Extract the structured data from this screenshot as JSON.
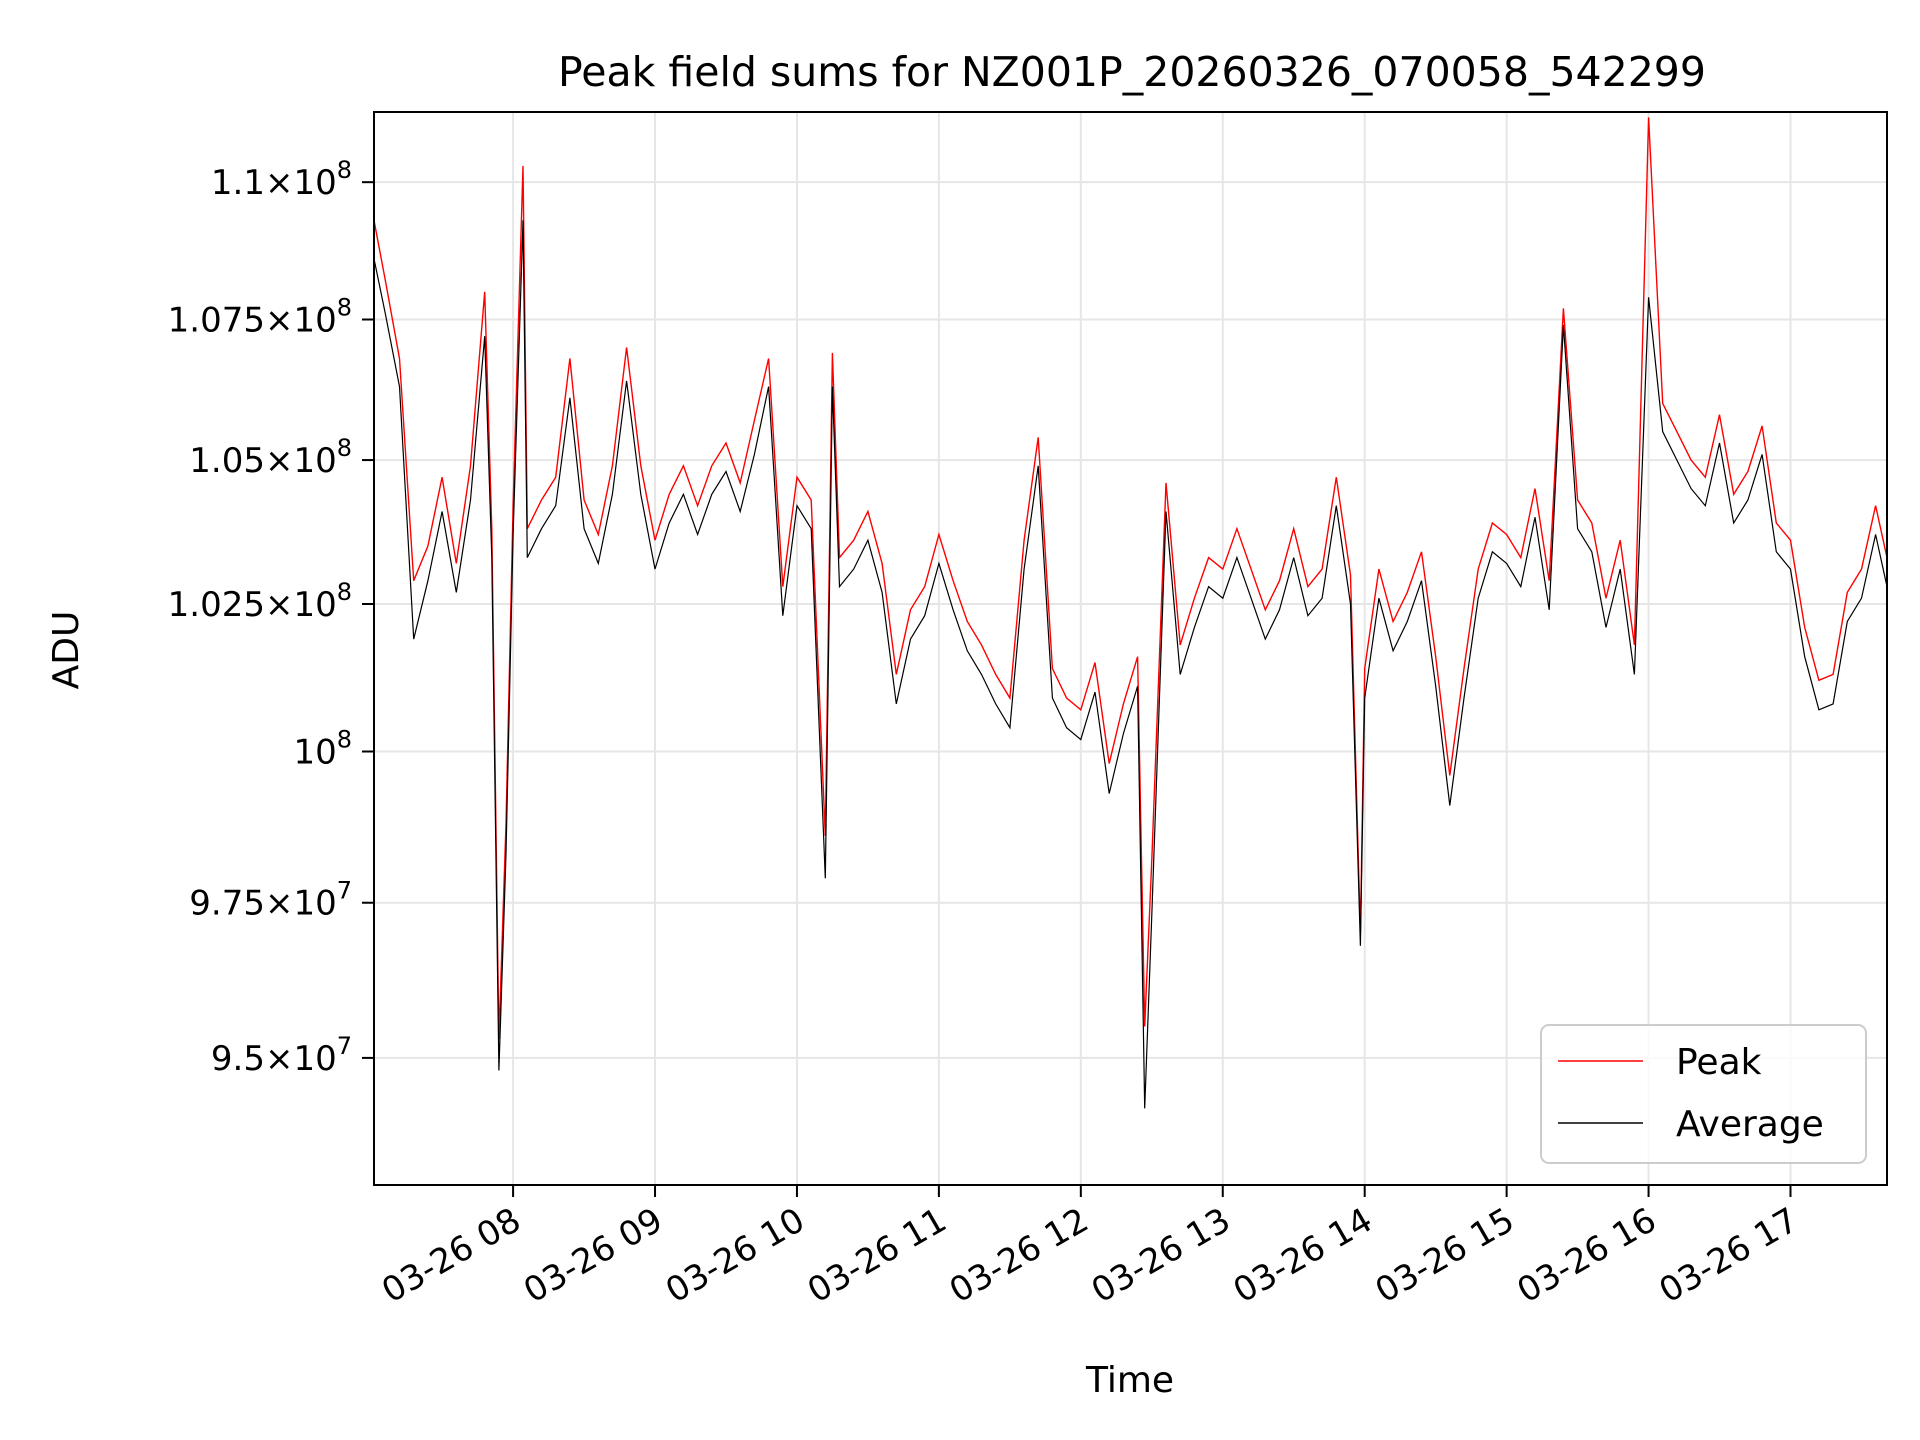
{
  "chart_data": {
    "type": "line",
    "title": "Peak field sums for NZ001P_20260326_070058_542299",
    "xlabel": "Time",
    "ylabel": "ADU",
    "y_scale": "log",
    "ylim": [
      93000000,
      111300000
    ],
    "x_range_hours": [
      7.02,
      17.68
    ],
    "grid": true,
    "legend_location": "lower-right",
    "x_ticks": [
      {
        "hour": 8,
        "label": "03-26 08"
      },
      {
        "hour": 9,
        "label": "03-26 09"
      },
      {
        "hour": 10,
        "label": "03-26 10"
      },
      {
        "hour": 11,
        "label": "03-26 11"
      },
      {
        "hour": 12,
        "label": "03-26 12"
      },
      {
        "hour": 13,
        "label": "03-26 13"
      },
      {
        "hour": 14,
        "label": "03-26 14"
      },
      {
        "hour": 15,
        "label": "03-26 15"
      },
      {
        "hour": 16,
        "label": "03-26 16"
      },
      {
        "hour": 17,
        "label": "03-26 17"
      }
    ],
    "y_ticks": [
      {
        "value": 95000000,
        "mantissa": "9.5",
        "exponent": "7"
      },
      {
        "value": 97500000,
        "mantissa": "9.75",
        "exponent": "7"
      },
      {
        "value": 100000000,
        "mantissa": "",
        "exponent": "8"
      },
      {
        "value": 102500000,
        "mantissa": "1.025",
        "exponent": "8"
      },
      {
        "value": 105000000,
        "mantissa": "1.05",
        "exponent": "8"
      },
      {
        "value": 107500000,
        "mantissa": "1.075",
        "exponent": "8"
      },
      {
        "value": 110000000,
        "mantissa": "1.1",
        "exponent": "8"
      }
    ],
    "series": [
      {
        "name": "Peak",
        "color": "#ff0000",
        "approximate_trace": true,
        "x_hours": [
          7.02,
          7.1,
          7.2,
          7.3,
          7.4,
          7.5,
          7.6,
          7.7,
          7.8,
          7.85,
          7.9,
          7.95,
          8.0,
          8.07,
          8.1,
          8.2,
          8.3,
          8.4,
          8.5,
          8.6,
          8.7,
          8.8,
          8.9,
          9.0,
          9.1,
          9.2,
          9.3,
          9.4,
          9.5,
          9.6,
          9.7,
          9.8,
          9.9,
          10.0,
          10.1,
          10.2,
          10.25,
          10.3,
          10.4,
          10.5,
          10.6,
          10.7,
          10.8,
          10.9,
          11.0,
          11.1,
          11.2,
          11.3,
          11.4,
          11.5,
          11.6,
          11.7,
          11.8,
          11.9,
          12.0,
          12.1,
          12.2,
          12.3,
          12.4,
          12.45,
          12.5,
          12.6,
          12.7,
          12.8,
          12.9,
          13.0,
          13.1,
          13.2,
          13.3,
          13.4,
          13.5,
          13.6,
          13.7,
          13.8,
          13.9,
          13.97,
          14.0,
          14.1,
          14.2,
          14.3,
          14.4,
          14.5,
          14.6,
          14.7,
          14.8,
          14.9,
          15.0,
          15.1,
          15.2,
          15.3,
          15.4,
          15.5,
          15.6,
          15.7,
          15.8,
          15.9,
          16.0,
          16.1,
          16.2,
          16.3,
          16.4,
          16.5,
          16.6,
          16.7,
          16.8,
          16.9,
          17.0,
          17.1,
          17.2,
          17.3,
          17.4,
          17.5,
          17.6,
          17.68
        ],
        "values": [
          109300000,
          108200000,
          106800000,
          102900000,
          103500000,
          104700000,
          103200000,
          104900000,
          108000000,
          103800000,
          95300000,
          98800000,
          104200000,
          110300000,
          103800000,
          104300000,
          104700000,
          106800000,
          104300000,
          103700000,
          104900000,
          107000000,
          104900000,
          103600000,
          104400000,
          104900000,
          104200000,
          104900000,
          105300000,
          104600000,
          105700000,
          106800000,
          102800000,
          104700000,
          104300000,
          98600000,
          106900000,
          103300000,
          103600000,
          104100000,
          103200000,
          101300000,
          102400000,
          102800000,
          103700000,
          102900000,
          102200000,
          101800000,
          101300000,
          100900000,
          103600000,
          105400000,
          101400000,
          100900000,
          100700000,
          101500000,
          99800000,
          100800000,
          101600000,
          95500000,
          98200000,
          104600000,
          101800000,
          102600000,
          103300000,
          103100000,
          103800000,
          103100000,
          102400000,
          102900000,
          103800000,
          102800000,
          103100000,
          104700000,
          103000000,
          97000000,
          101400000,
          103100000,
          102200000,
          102700000,
          103400000,
          101600000,
          99600000,
          101400000,
          103100000,
          103900000,
          103700000,
          103300000,
          104500000,
          102900000,
          107700000,
          104300000,
          103900000,
          102600000,
          103600000,
          101800000,
          111200000,
          106000000,
          105500000,
          105000000,
          104700000,
          105800000,
          104400000,
          104800000,
          105600000,
          103900000,
          103600000,
          102100000,
          101200000,
          101300000,
          102700000,
          103100000,
          104200000,
          103300000
        ]
      },
      {
        "name": "Average",
        "color": "#000000",
        "approximate_trace": true,
        "x_hours": [
          7.02,
          7.1,
          7.2,
          7.3,
          7.4,
          7.5,
          7.6,
          7.7,
          7.8,
          7.85,
          7.9,
          7.95,
          8.0,
          8.07,
          8.1,
          8.2,
          8.3,
          8.4,
          8.5,
          8.6,
          8.7,
          8.8,
          8.9,
          9.0,
          9.1,
          9.2,
          9.3,
          9.4,
          9.5,
          9.6,
          9.7,
          9.8,
          9.9,
          10.0,
          10.1,
          10.2,
          10.25,
          10.3,
          10.4,
          10.5,
          10.6,
          10.7,
          10.8,
          10.9,
          11.0,
          11.1,
          11.2,
          11.3,
          11.4,
          11.5,
          11.6,
          11.7,
          11.8,
          11.9,
          12.0,
          12.1,
          12.2,
          12.3,
          12.4,
          12.45,
          12.5,
          12.6,
          12.7,
          12.8,
          12.9,
          13.0,
          13.1,
          13.2,
          13.3,
          13.4,
          13.5,
          13.6,
          13.7,
          13.8,
          13.9,
          13.97,
          14.0,
          14.1,
          14.2,
          14.3,
          14.4,
          14.5,
          14.6,
          14.7,
          14.8,
          14.9,
          15.0,
          15.1,
          15.2,
          15.3,
          15.4,
          15.5,
          15.6,
          15.7,
          15.8,
          15.9,
          16.0,
          16.1,
          16.2,
          16.3,
          16.4,
          16.5,
          16.6,
          16.7,
          16.8,
          16.9,
          17.0,
          17.1,
          17.2,
          17.3,
          17.4,
          17.5,
          17.6,
          17.68
        ],
        "values": [
          108600000,
          107600000,
          106300000,
          101900000,
          102900000,
          104100000,
          102700000,
          104300000,
          107200000,
          103300000,
          94800000,
          98300000,
          103700000,
          109300000,
          103300000,
          103800000,
          104200000,
          106100000,
          103800000,
          103200000,
          104400000,
          106400000,
          104400000,
          103100000,
          103900000,
          104400000,
          103700000,
          104400000,
          104800000,
          104100000,
          105100000,
          106300000,
          102300000,
          104200000,
          103800000,
          97900000,
          106300000,
          102800000,
          103100000,
          103600000,
          102700000,
          100800000,
          101900000,
          102300000,
          103200000,
          102400000,
          101700000,
          101300000,
          100800000,
          100400000,
          103100000,
          104900000,
          100900000,
          100400000,
          100200000,
          101000000,
          99300000,
          100300000,
          101100000,
          94200000,
          97300000,
          104100000,
          101300000,
          102100000,
          102800000,
          102600000,
          103300000,
          102600000,
          101900000,
          102400000,
          103300000,
          102300000,
          102600000,
          104200000,
          102500000,
          96800000,
          100900000,
          102600000,
          101700000,
          102200000,
          102900000,
          101100000,
          99100000,
          100900000,
          102600000,
          103400000,
          103200000,
          102800000,
          104000000,
          102400000,
          107400000,
          103800000,
          103400000,
          102100000,
          103100000,
          101300000,
          107900000,
          105500000,
          105000000,
          104500000,
          104200000,
          105300000,
          103900000,
          104300000,
          105100000,
          103400000,
          103100000,
          101600000,
          100700000,
          100800000,
          102200000,
          102600000,
          103700000,
          102800000
        ]
      }
    ]
  }
}
